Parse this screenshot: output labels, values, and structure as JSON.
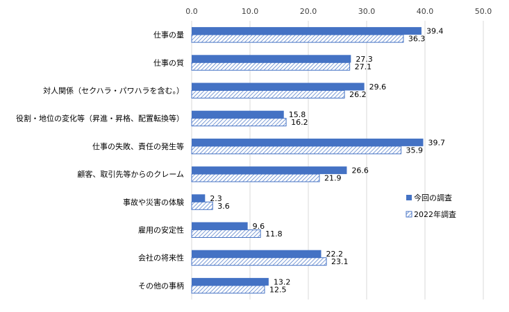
{
  "chart_data": {
    "type": "bar",
    "orientation": "horizontal",
    "categories": [
      "仕事の量",
      "仕事の質",
      "対人関係（セクハラ・パワハラを含む。）",
      "役割・地位の変化等（昇進・昇格、配置転換等）",
      "仕事の失敗、責任の発生等",
      "顧客、取引先等からのクレーム",
      "事故や災害の体験",
      "雇用の安定性",
      "会社の将来性",
      "その他の事柄"
    ],
    "series": [
      {
        "name": "今回の調査",
        "values": [
          39.4,
          27.3,
          29.6,
          15.8,
          39.7,
          26.6,
          2.3,
          9.6,
          22.2,
          13.2
        ],
        "style": "solid",
        "color": "#4472C4"
      },
      {
        "name": "2022年調査",
        "values": [
          36.3,
          27.1,
          26.2,
          16.2,
          35.9,
          21.9,
          3.6,
          11.8,
          23.1,
          12.5
        ],
        "style": "hatched",
        "color": "#4472C4"
      }
    ],
    "xlim": [
      0,
      50
    ],
    "xticks": [
      "0.0",
      "10.0",
      "20.0",
      "30.0",
      "40.0",
      "50.0"
    ],
    "xaxis_position": "top",
    "grid": true,
    "legend_position": "right-bottom"
  }
}
